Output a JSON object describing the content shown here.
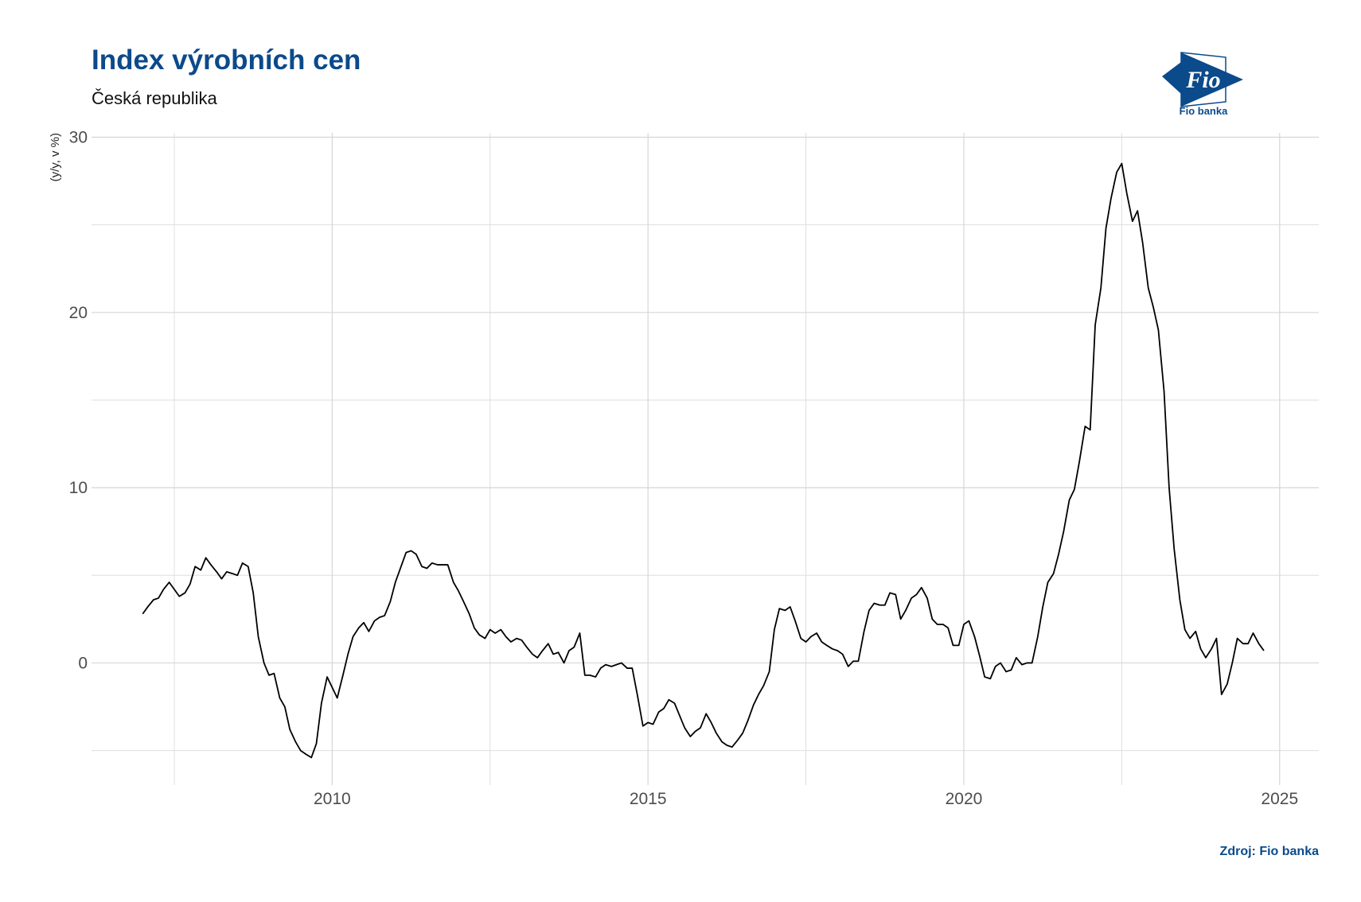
{
  "chart_data": {
    "type": "line",
    "title": "Index výrobních cen",
    "subtitle": "Česká republika",
    "y_label": "(y/y, v %)",
    "source": "Zdroj: Fio banka",
    "logo_text": "Fio",
    "logo_caption": "Fio banka",
    "color": "#000000",
    "grid": true,
    "xlim": [
      2006.19,
      2025.62
    ],
    "ylim": [
      -6.97,
      30.25
    ],
    "xticks": [
      2010,
      2015,
      2020,
      2025
    ],
    "yticks": [
      0,
      10,
      20,
      30
    ],
    "x_minor_ticks": [
      2007.5,
      2012.5,
      2017.5,
      2022.5
    ],
    "y_minor_ticks": [
      -5,
      5,
      15,
      25
    ],
    "x": [
      2007.0,
      2007.08,
      2007.17,
      2007.25,
      2007.33,
      2007.42,
      2007.5,
      2007.58,
      2007.67,
      2007.75,
      2007.83,
      2007.92,
      2008.0,
      2008.08,
      2008.17,
      2008.25,
      2008.33,
      2008.42,
      2008.5,
      2008.58,
      2008.67,
      2008.75,
      2008.83,
      2008.92,
      2009.0,
      2009.08,
      2009.17,
      2009.25,
      2009.33,
      2009.42,
      2009.5,
      2009.58,
      2009.67,
      2009.75,
      2009.83,
      2009.92,
      2010.0,
      2010.08,
      2010.17,
      2010.25,
      2010.33,
      2010.42,
      2010.5,
      2010.58,
      2010.67,
      2010.75,
      2010.83,
      2010.92,
      2011.0,
      2011.08,
      2011.17,
      2011.25,
      2011.33,
      2011.42,
      2011.5,
      2011.58,
      2011.67,
      2011.75,
      2011.83,
      2011.92,
      2012.0,
      2012.08,
      2012.17,
      2012.25,
      2012.33,
      2012.42,
      2012.5,
      2012.58,
      2012.67,
      2012.75,
      2012.83,
      2012.92,
      2013.0,
      2013.08,
      2013.17,
      2013.25,
      2013.33,
      2013.42,
      2013.5,
      2013.58,
      2013.67,
      2013.75,
      2013.83,
      2013.92,
      2014.0,
      2014.08,
      2014.17,
      2014.25,
      2014.33,
      2014.42,
      2014.5,
      2014.58,
      2014.67,
      2014.75,
      2014.83,
      2014.92,
      2015.0,
      2015.08,
      2015.17,
      2015.25,
      2015.33,
      2015.42,
      2015.5,
      2015.58,
      2015.67,
      2015.75,
      2015.83,
      2015.92,
      2016.0,
      2016.08,
      2016.17,
      2016.25,
      2016.33,
      2016.42,
      2016.5,
      2016.58,
      2016.67,
      2016.75,
      2016.83,
      2016.92,
      2017.0,
      2017.08,
      2017.17,
      2017.25,
      2017.33,
      2017.42,
      2017.5,
      2017.58,
      2017.67,
      2017.75,
      2017.83,
      2017.92,
      2018.0,
      2018.08,
      2018.17,
      2018.25,
      2018.33,
      2018.42,
      2018.5,
      2018.58,
      2018.67,
      2018.75,
      2018.83,
      2018.92,
      2019.0,
      2019.08,
      2019.17,
      2019.25,
      2019.33,
      2019.42,
      2019.5,
      2019.58,
      2019.67,
      2019.75,
      2019.83,
      2019.92,
      2020.0,
      2020.08,
      2020.17,
      2020.25,
      2020.33,
      2020.42,
      2020.5,
      2020.58,
      2020.67,
      2020.75,
      2020.83,
      2020.92,
      2021.0,
      2021.08,
      2021.17,
      2021.25,
      2021.33,
      2021.42,
      2021.5,
      2021.58,
      2021.67,
      2021.75,
      2021.83,
      2021.92,
      2022.0,
      2022.08,
      2022.17,
      2022.25,
      2022.33,
      2022.42,
      2022.5,
      2022.58,
      2022.67,
      2022.75,
      2022.83,
      2022.92,
      2023.0,
      2023.08,
      2023.17,
      2023.25,
      2023.33,
      2023.42,
      2023.5,
      2023.58,
      2023.67,
      2023.75,
      2023.83,
      2023.92,
      2024.0,
      2024.08,
      2024.17,
      2024.25,
      2024.33,
      2024.42,
      2024.5,
      2024.58,
      2024.67,
      2024.75
    ],
    "values": [
      2.8,
      3.2,
      3.6,
      3.7,
      4.2,
      4.6,
      4.2,
      3.8,
      4.0,
      4.5,
      5.5,
      5.3,
      6.0,
      5.6,
      5.2,
      4.8,
      5.2,
      5.1,
      5.0,
      5.7,
      5.5,
      4.0,
      1.5,
      0.0,
      -0.7,
      -0.6,
      -2.0,
      -2.5,
      -3.8,
      -4.5,
      -5.0,
      -5.2,
      -5.4,
      -4.6,
      -2.3,
      -0.8,
      -1.4,
      -2.0,
      -0.7,
      0.5,
      1.5,
      2.0,
      2.3,
      1.8,
      2.4,
      2.6,
      2.7,
      3.5,
      4.6,
      5.4,
      6.3,
      6.4,
      6.2,
      5.5,
      5.4,
      5.7,
      5.6,
      5.6,
      5.6,
      4.6,
      4.1,
      3.5,
      2.8,
      2.0,
      1.6,
      1.4,
      1.9,
      1.7,
      1.9,
      1.5,
      1.2,
      1.4,
      1.3,
      0.9,
      0.5,
      0.3,
      0.7,
      1.1,
      0.5,
      0.6,
      0.0,
      0.7,
      0.9,
      1.7,
      -0.7,
      -0.7,
      -0.8,
      -0.3,
      -0.1,
      -0.2,
      -0.1,
      0.0,
      -0.3,
      -0.3,
      -1.8,
      -3.6,
      -3.4,
      -3.5,
      -2.8,
      -2.6,
      -2.1,
      -2.3,
      -3.0,
      -3.7,
      -4.2,
      -3.9,
      -3.7,
      -2.9,
      -3.4,
      -4.0,
      -4.5,
      -4.7,
      -4.8,
      -4.4,
      -4.0,
      -3.3,
      -2.4,
      -1.8,
      -1.3,
      -0.5,
      1.9,
      3.1,
      3.0,
      3.2,
      2.4,
      1.4,
      1.2,
      1.5,
      1.7,
      1.2,
      1.0,
      0.8,
      0.7,
      0.5,
      -0.2,
      0.1,
      0.1,
      1.8,
      3.0,
      3.4,
      3.3,
      3.3,
      4.0,
      3.9,
      2.5,
      3.0,
      3.7,
      3.9,
      4.3,
      3.7,
      2.5,
      2.2,
      2.2,
      2.0,
      1.0,
      1.0,
      2.2,
      2.4,
      1.5,
      0.4,
      -0.8,
      -0.9,
      -0.2,
      0.0,
      -0.5,
      -0.4,
      0.3,
      -0.1,
      0.0,
      0.0,
      1.5,
      3.2,
      4.6,
      5.1,
      6.2,
      7.5,
      9.3,
      9.9,
      11.5,
      13.5,
      13.3,
      19.3,
      21.4,
      24.8,
      26.5,
      28.0,
      28.5,
      26.8,
      25.2,
      25.8,
      24.0,
      21.4,
      20.3,
      19.0,
      15.5,
      10.0,
      6.5,
      3.6,
      1.9,
      1.4,
      1.8,
      0.8,
      0.3,
      0.8,
      1.4,
      -1.8,
      -1.2,
      0.0,
      1.4,
      1.1,
      1.1,
      1.7,
      1.1,
      0.7
    ]
  }
}
